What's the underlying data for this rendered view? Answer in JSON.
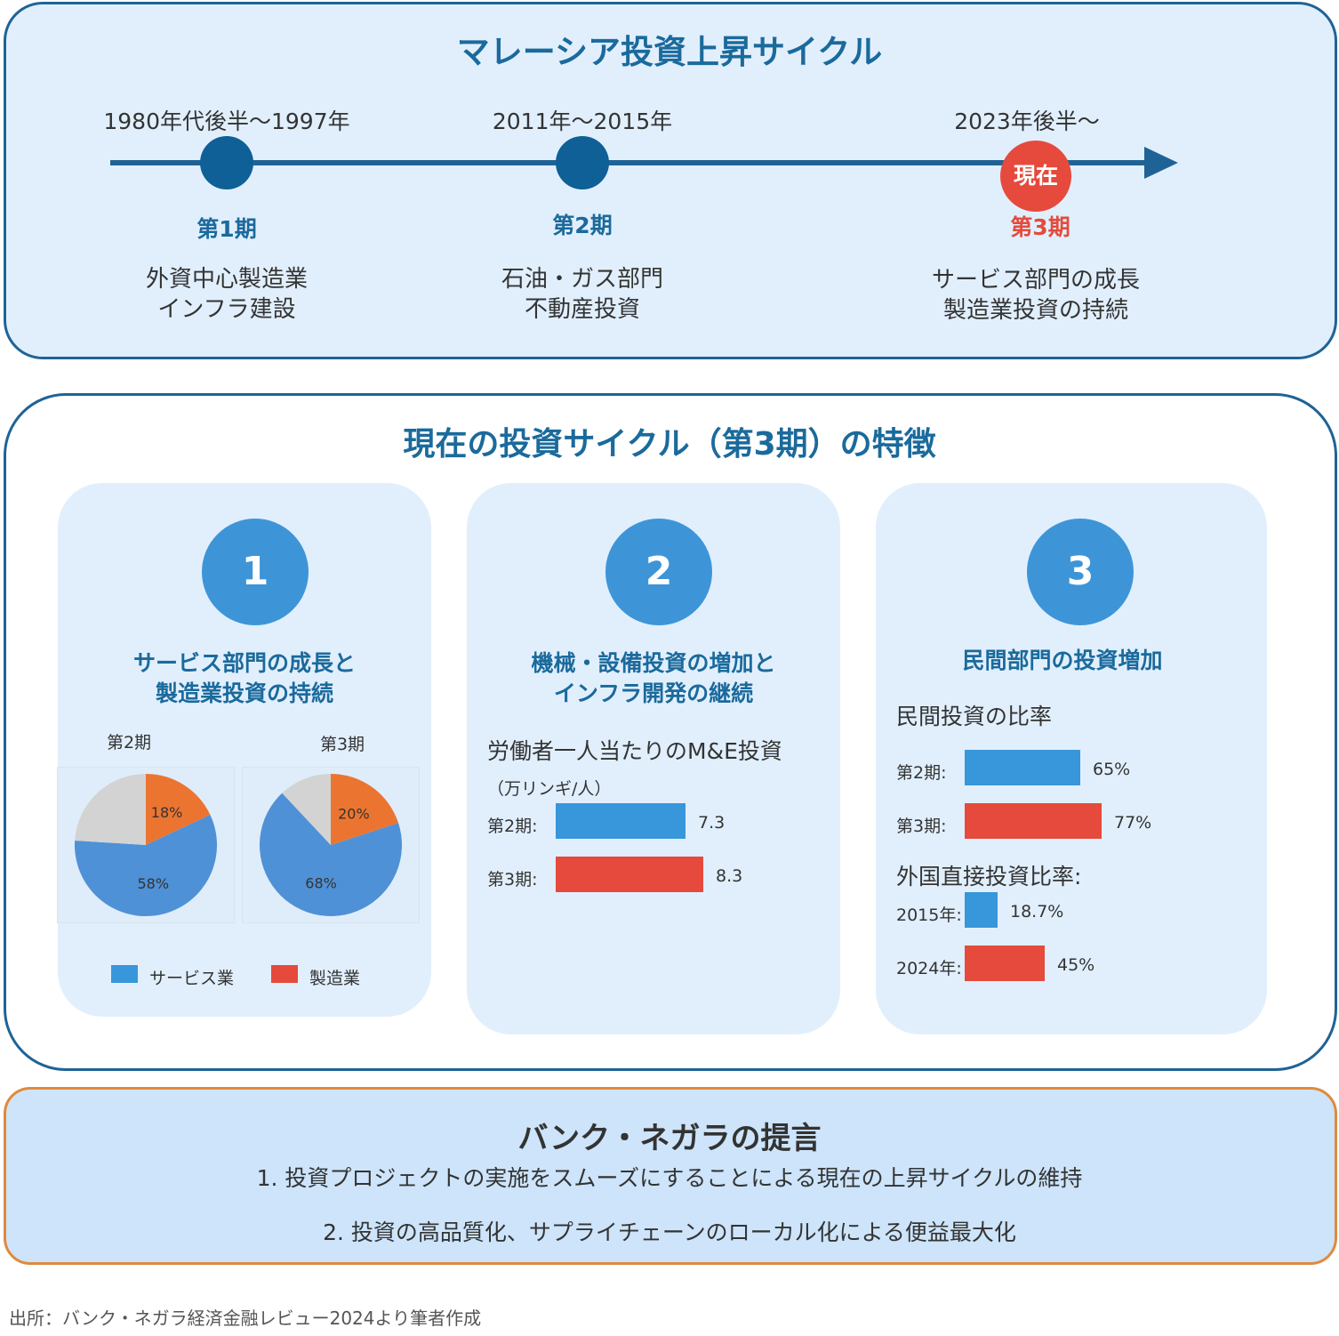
{
  "timeline": {
    "title": "マレーシア投資上昇サイクル",
    "phases": [
      {
        "period": "1980年代後半～1997年",
        "label": "第1期",
        "desc": [
          "外資中心製造業",
          "インフラ建設"
        ]
      },
      {
        "period": "2011年～2015年",
        "label": "第2期",
        "desc": [
          "石油・ガス部門",
          "不動産投資"
        ]
      },
      {
        "period": "2023年後半～",
        "label": "第3期",
        "badge": "現在",
        "desc": [
          "サービス部門の成長",
          "製造業投資の持続"
        ]
      }
    ]
  },
  "features": {
    "title": "現在の投資サイクル（第3期）の特徴",
    "cards": [
      {
        "number": "1",
        "title": [
          "サービス部門の成長と",
          "製造業投資の持続"
        ]
      },
      {
        "number": "2",
        "title": [
          "機械・設備投資の増加と",
          "インフラ開発の継続"
        ],
        "subtitle": "労働者一人当たりのM&E投資",
        "unit": "（万リンギ/人）"
      },
      {
        "number": "3",
        "title": [
          "民間部門の投資増加"
        ],
        "subtitle": "民間投資の比率",
        "subtitle2": "外国直接投資比率:"
      }
    ]
  },
  "chart_data": [
    {
      "type": "pie",
      "title": "第2期",
      "slices": [
        {
          "name": "製造業",
          "value": 18,
          "label": "18%",
          "color": "#eb7530"
        },
        {
          "name": "サービス業",
          "value": 58,
          "label": "58%",
          "color": "#4f91d6"
        },
        {
          "name": "",
          "value": 24,
          "label": "",
          "color": "#d3d3d3"
        }
      ]
    },
    {
      "type": "pie",
      "title": "第3期",
      "slices": [
        {
          "name": "製造業",
          "value": 20,
          "label": "20%",
          "color": "#eb7530"
        },
        {
          "name": "サービス業",
          "value": 68,
          "label": "68%",
          "color": "#4f91d6"
        },
        {
          "name": "",
          "value": 12,
          "label": "",
          "color": "#d3d3d3"
        }
      ]
    },
    {
      "type": "bar",
      "title": "労働者一人当たりのM&E投資",
      "categories": [
        "第2期:",
        "第3期:"
      ],
      "values": [
        7.3,
        8.3
      ],
      "labels": [
        "7.3",
        "8.3"
      ]
    },
    {
      "type": "bar",
      "title": "民間投資の比率",
      "categories": [
        "第2期:",
        "第3期:"
      ],
      "values": [
        65,
        77
      ],
      "labels": [
        "65%",
        "77%"
      ]
    },
    {
      "type": "bar",
      "title": "外国直接投資比率:",
      "categories": [
        "2015年:",
        "2024年:"
      ],
      "values": [
        18.7,
        45
      ],
      "labels": [
        "18.7%",
        "45%"
      ]
    }
  ],
  "legend": {
    "items": [
      {
        "label": "サービス業",
        "color": "#3896db"
      },
      {
        "label": "製造業",
        "color": "#e54a3c"
      }
    ]
  },
  "proposal": {
    "title": "バンク・ネガラの提言",
    "items": [
      "1. 投資プロジェクトの実施をスムーズにすることによる現在の上昇サイクルの維持",
      "2. 投資の高品質化、サプライチェーンのローカル化による便益最大化"
    ]
  },
  "source": "出所：バンク・ネガラ経済金融レビュー2024より筆者作成",
  "colors": {
    "primary": "#1b6a9c",
    "accent_red": "#e54a3c",
    "blue": "#3896db",
    "orange": "#eb7530"
  }
}
